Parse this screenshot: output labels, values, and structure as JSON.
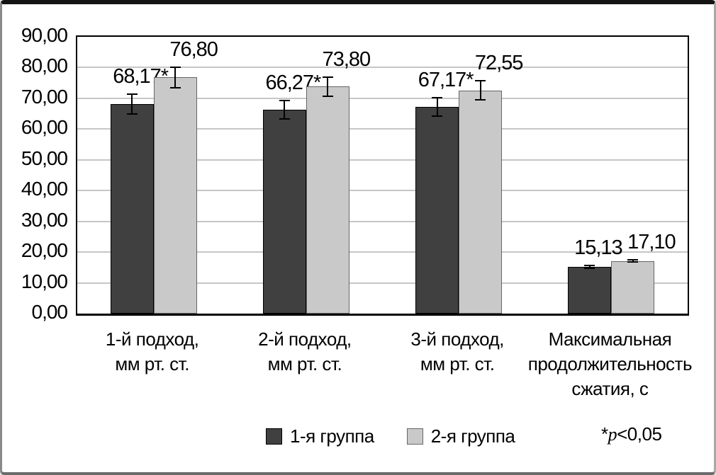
{
  "chart_data": {
    "type": "bar",
    "title": "",
    "xlabel": "",
    "ylabel": "",
    "ylim": [
      0,
      90
    ],
    "ytick_step": 10,
    "ytick_labels": [
      "0,00",
      "10,00",
      "20,00",
      "30,00",
      "40,00",
      "50,00",
      "60,00",
      "70,00",
      "80,00",
      "90,00"
    ],
    "grid": true,
    "grid_color": "#c6c6c6",
    "axis_color": "#000000",
    "legend_position": "bottom-center",
    "categories": [
      [
        "1-й подход,",
        "мм рт. ст."
      ],
      [
        "2-й подход,",
        "мм рт. ст."
      ],
      [
        "3-й подход,",
        "мм рт. ст."
      ],
      [
        "Максимальная",
        "продолжительность",
        "сжатия, с"
      ]
    ],
    "series": [
      {
        "name": "1-я группа",
        "color": "#404040",
        "border_color": "#000000",
        "values": [
          68.17,
          66.27,
          67.17,
          15.13
        ],
        "value_labels": [
          "68,17*",
          "66,27*",
          "67,17*",
          "15,13"
        ],
        "errors": [
          3.5,
          3.3,
          3.2,
          0.7
        ]
      },
      {
        "name": "2-я группа",
        "color": "#c9c9c9",
        "border_color": "#666666",
        "values": [
          76.8,
          73.8,
          72.55,
          17.1
        ],
        "value_labels": [
          "76,80",
          "73,80",
          "72,55",
          "17,10"
        ],
        "errors": [
          3.6,
          3.4,
          3.3,
          0.6
        ]
      }
    ],
    "footnote": {
      "asterisk": "*",
      "symbol": "p",
      "rest": "<0,05"
    }
  }
}
